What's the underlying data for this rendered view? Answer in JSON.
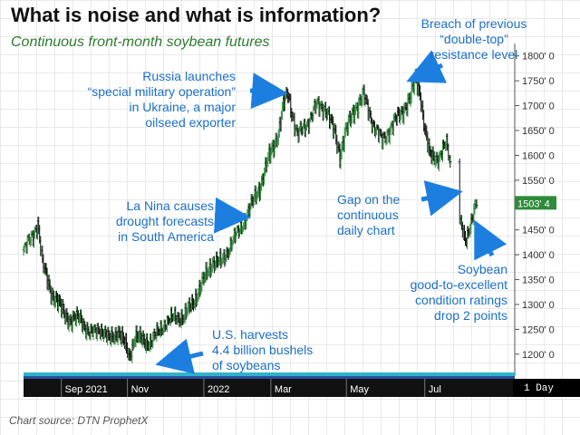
{
  "title": "What is noise and what is information?",
  "subtitle": "Continuous front-month soybean futures",
  "source": "Chart source: DTN ProphetX",
  "chart_data": {
    "type": "candlestick",
    "title": "What is noise and what is information?",
    "subtitle": "Continuous front-month soybean futures",
    "ylim": [
      1165,
      1825
    ],
    "y_ticks": [
      "1800' 0",
      "1750' 0",
      "1700' 0",
      "1650' 0",
      "1600' 0",
      "1550' 0",
      "1500' 0",
      "1450' 0",
      "1400' 0",
      "1350' 0",
      "1300' 0",
      "1250' 0",
      "1200' 0"
    ],
    "y_tick_values": [
      1800,
      1750,
      1700,
      1650,
      1600,
      1550,
      1500,
      1450,
      1400,
      1350,
      1300,
      1250,
      1200
    ],
    "x_ticks": [
      "Sep 2021",
      "Nov",
      "2022",
      "Mar",
      "May",
      "Jul"
    ],
    "x_tick_index": [
      40,
      110,
      191,
      262,
      342,
      425
    ],
    "last_price_label": "1503' 4",
    "last_price": 1503.5,
    "timeframe_label": "1 Day",
    "grid": true,
    "price_path": [
      [
        0,
        1410
      ],
      [
        10,
        1440
      ],
      [
        15,
        1465
      ],
      [
        20,
        1380
      ],
      [
        30,
        1320
      ],
      [
        40,
        1290
      ],
      [
        50,
        1265
      ],
      [
        60,
        1275
      ],
      [
        70,
        1240
      ],
      [
        80,
        1255
      ],
      [
        90,
        1230
      ],
      [
        100,
        1245
      ],
      [
        108,
        1215
      ],
      [
        112,
        1195
      ],
      [
        118,
        1235
      ],
      [
        128,
        1225
      ],
      [
        135,
        1225
      ],
      [
        150,
        1265
      ],
      [
        160,
        1275
      ],
      [
        170,
        1275
      ],
      [
        180,
        1305
      ],
      [
        190,
        1345
      ],
      [
        200,
        1385
      ],
      [
        210,
        1385
      ],
      [
        220,
        1425
      ],
      [
        230,
        1455
      ],
      [
        240,
        1495
      ],
      [
        250,
        1535
      ],
      [
        260,
        1595
      ],
      [
        270,
        1645
      ],
      [
        275,
        1700
      ],
      [
        280,
        1725
      ],
      [
        285,
        1680
      ],
      [
        290,
        1640
      ],
      [
        300,
        1665
      ],
      [
        310,
        1700
      ],
      [
        320,
        1695
      ],
      [
        330,
        1640
      ],
      [
        335,
        1600
      ],
      [
        340,
        1640
      ],
      [
        350,
        1690
      ],
      [
        360,
        1720
      ],
      [
        370,
        1665
      ],
      [
        380,
        1630
      ],
      [
        390,
        1660
      ],
      [
        400,
        1685
      ],
      [
        410,
        1715
      ],
      [
        415,
        1755
      ],
      [
        420,
        1725
      ],
      [
        425,
        1650
      ],
      [
        430,
        1600
      ],
      [
        440,
        1595
      ],
      [
        448,
        1625
      ],
      [
        452,
        1585
      ],
      [
        462,
        1465
      ],
      [
        468,
        1430
      ],
      [
        472,
        1455
      ],
      [
        478,
        1490
      ],
      [
        480,
        1503.5
      ]
    ]
  },
  "annotations": {
    "russia": "Russia launches\n“special military operation”\nin Ukraine, a major\noilseed exporter",
    "breach": "Breach of previous\n“double-top”\nresistance level",
    "lanina": "La Nina causes\ndrought forecasts\nin South America",
    "gap": "Gap on the\ncontinuous\ndaily chart",
    "condition": "Soybean\ngood-to-excellent\ncondition ratings\ndrop 2 points",
    "harvest": "U.S. harvests\n4.4 billion bushels\nof soybeans"
  }
}
